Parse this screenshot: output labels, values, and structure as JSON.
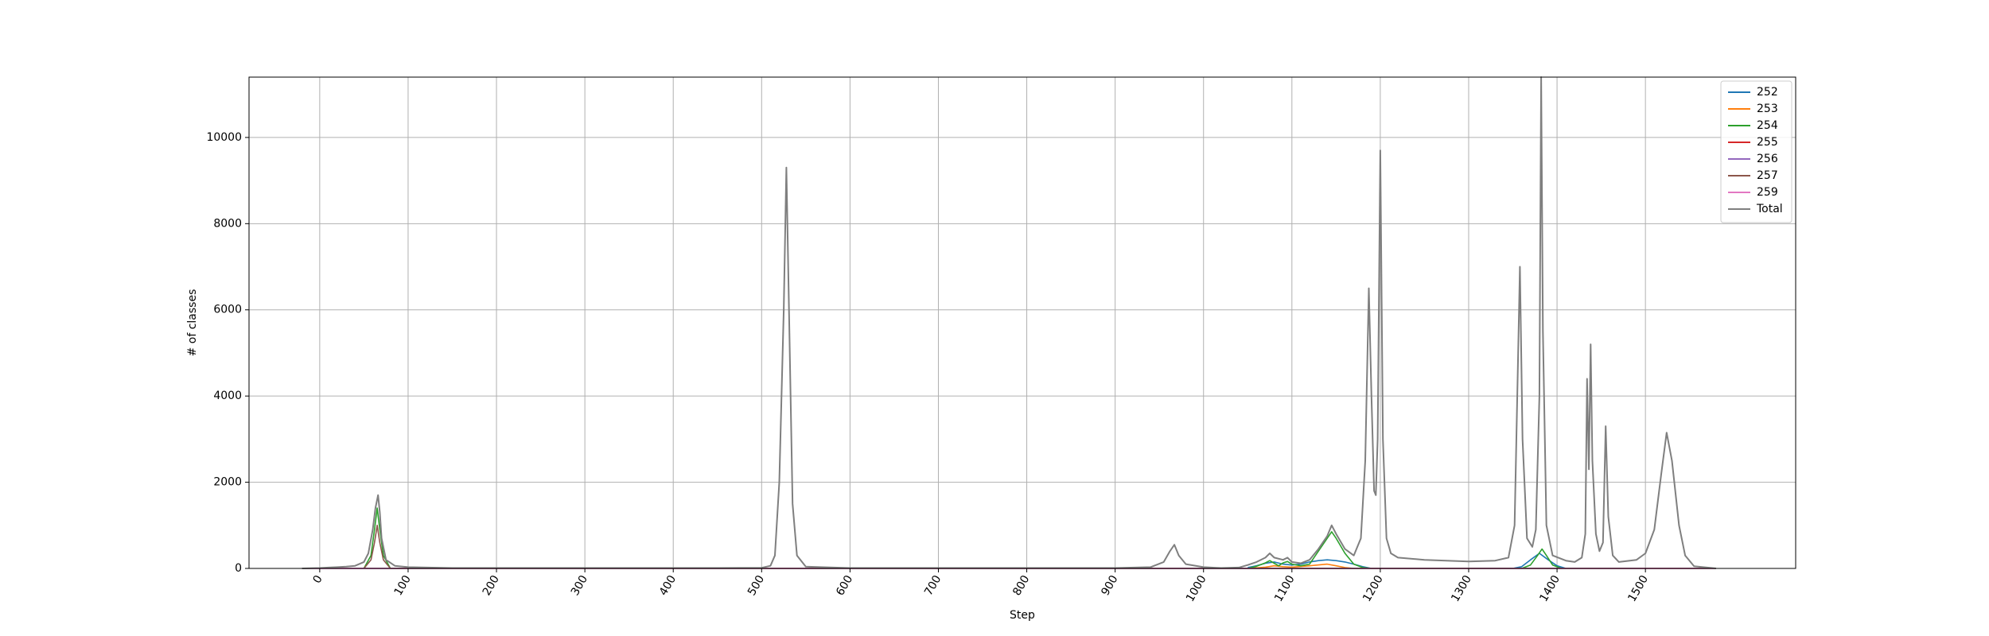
{
  "chart_data": {
    "type": "line",
    "title": "",
    "xlabel": "Step",
    "ylabel": "# of classes",
    "xlim": [
      -80,
      1670
    ],
    "ylim": [
      0,
      11400
    ],
    "xticks": [
      0,
      100,
      200,
      300,
      400,
      500,
      600,
      700,
      800,
      900,
      1000,
      1100,
      1200,
      1300,
      1400,
      1500
    ],
    "yticks": [
      0,
      2000,
      4000,
      6000,
      8000,
      10000
    ],
    "grid": true,
    "legend_position": "top-right",
    "series": [
      {
        "name": "252",
        "color": "#1f77b4",
        "points": [
          [
            1050,
            20
          ],
          [
            1060,
            60
          ],
          [
            1070,
            120
          ],
          [
            1080,
            150
          ],
          [
            1090,
            100
          ],
          [
            1100,
            80
          ],
          [
            1110,
            100
          ],
          [
            1120,
            150
          ],
          [
            1130,
            180
          ],
          [
            1140,
            200
          ],
          [
            1150,
            180
          ],
          [
            1160,
            150
          ],
          [
            1170,
            100
          ],
          [
            1180,
            40
          ],
          [
            1190,
            0
          ],
          [
            1350,
            0
          ],
          [
            1360,
            40
          ],
          [
            1370,
            200
          ],
          [
            1380,
            350
          ],
          [
            1390,
            200
          ],
          [
            1400,
            60
          ],
          [
            1410,
            0
          ]
        ]
      },
      {
        "name": "253",
        "color": "#ff7f0e",
        "points": [
          [
            1050,
            0
          ],
          [
            1070,
            30
          ],
          [
            1080,
            60
          ],
          [
            1090,
            40
          ],
          [
            1100,
            30
          ],
          [
            1120,
            60
          ],
          [
            1140,
            100
          ],
          [
            1150,
            60
          ],
          [
            1160,
            20
          ],
          [
            1170,
            0
          ]
        ]
      },
      {
        "name": "254",
        "color": "#2ca02c",
        "points": [
          [
            50,
            0
          ],
          [
            58,
            300
          ],
          [
            62,
            900
          ],
          [
            65,
            1400
          ],
          [
            68,
            900
          ],
          [
            72,
            300
          ],
          [
            80,
            0
          ],
          [
            1050,
            0
          ],
          [
            1060,
            50
          ],
          [
            1070,
            130
          ],
          [
            1075,
            180
          ],
          [
            1080,
            120
          ],
          [
            1085,
            60
          ],
          [
            1090,
            130
          ],
          [
            1095,
            160
          ],
          [
            1100,
            100
          ],
          [
            1110,
            60
          ],
          [
            1120,
            100
          ],
          [
            1130,
            400
          ],
          [
            1140,
            700
          ],
          [
            1145,
            850
          ],
          [
            1150,
            700
          ],
          [
            1160,
            350
          ],
          [
            1170,
            100
          ],
          [
            1180,
            20
          ],
          [
            1190,
            0
          ],
          [
            1360,
            0
          ],
          [
            1370,
            80
          ],
          [
            1378,
            300
          ],
          [
            1383,
            450
          ],
          [
            1388,
            300
          ],
          [
            1395,
            80
          ],
          [
            1405,
            0
          ]
        ]
      },
      {
        "name": "255",
        "color": "#d62728",
        "points": [
          [
            -20,
            0
          ],
          [
            1580,
            0
          ]
        ]
      },
      {
        "name": "256",
        "color": "#9467bd",
        "points": [
          [
            -20,
            0
          ],
          [
            1580,
            0
          ]
        ]
      },
      {
        "name": "257",
        "color": "#8c564b",
        "points": [
          [
            50,
            0
          ],
          [
            58,
            200
          ],
          [
            62,
            600
          ],
          [
            65,
            1000
          ],
          [
            68,
            600
          ],
          [
            72,
            200
          ],
          [
            80,
            0
          ],
          [
            1580,
            0
          ]
        ]
      },
      {
        "name": "259",
        "color": "#e377c2",
        "points": [
          [
            -20,
            0
          ],
          [
            1580,
            0
          ]
        ]
      },
      {
        "name": "Total",
        "color": "#7f7f7f",
        "points": [
          [
            -20,
            0
          ],
          [
            0,
            10
          ],
          [
            10,
            20
          ],
          [
            20,
            30
          ],
          [
            30,
            40
          ],
          [
            40,
            60
          ],
          [
            50,
            150
          ],
          [
            55,
            350
          ],
          [
            60,
            900
          ],
          [
            63,
            1400
          ],
          [
            66,
            1700
          ],
          [
            68,
            1300
          ],
          [
            70,
            700
          ],
          [
            75,
            200
          ],
          [
            85,
            60
          ],
          [
            100,
            30
          ],
          [
            150,
            10
          ],
          [
            300,
            10
          ],
          [
            450,
            10
          ],
          [
            500,
            15
          ],
          [
            510,
            60
          ],
          [
            515,
            300
          ],
          [
            520,
            2000
          ],
          [
            525,
            6000
          ],
          [
            528,
            9300
          ],
          [
            531,
            6000
          ],
          [
            535,
            1500
          ],
          [
            540,
            300
          ],
          [
            550,
            40
          ],
          [
            600,
            10
          ],
          [
            900,
            10
          ],
          [
            940,
            30
          ],
          [
            955,
            150
          ],
          [
            962,
            400
          ],
          [
            967,
            550
          ],
          [
            972,
            300
          ],
          [
            980,
            100
          ],
          [
            1000,
            30
          ],
          [
            1020,
            10
          ],
          [
            1040,
            20
          ],
          [
            1050,
            80
          ],
          [
            1060,
            150
          ],
          [
            1070,
            250
          ],
          [
            1075,
            350
          ],
          [
            1080,
            250
          ],
          [
            1090,
            200
          ],
          [
            1095,
            250
          ],
          [
            1100,
            150
          ],
          [
            1110,
            120
          ],
          [
            1120,
            200
          ],
          [
            1130,
            450
          ],
          [
            1140,
            750
          ],
          [
            1145,
            1000
          ],
          [
            1150,
            800
          ],
          [
            1160,
            450
          ],
          [
            1170,
            300
          ],
          [
            1178,
            700
          ],
          [
            1183,
            2500
          ],
          [
            1187,
            6500
          ],
          [
            1190,
            4000
          ],
          [
            1193,
            1800
          ],
          [
            1195,
            1700
          ],
          [
            1197,
            3000
          ],
          [
            1200,
            9700
          ],
          [
            1203,
            3000
          ],
          [
            1207,
            700
          ],
          [
            1212,
            350
          ],
          [
            1220,
            250
          ],
          [
            1250,
            200
          ],
          [
            1300,
            160
          ],
          [
            1330,
            180
          ],
          [
            1345,
            250
          ],
          [
            1352,
            1000
          ],
          [
            1356,
            5000
          ],
          [
            1358,
            7000
          ],
          [
            1361,
            3000
          ],
          [
            1366,
            700
          ],
          [
            1372,
            500
          ],
          [
            1376,
            900
          ],
          [
            1380,
            4000
          ],
          [
            1382,
            11400
          ],
          [
            1384,
            5500
          ],
          [
            1388,
            1000
          ],
          [
            1395,
            300
          ],
          [
            1410,
            180
          ],
          [
            1420,
            150
          ],
          [
            1428,
            250
          ],
          [
            1432,
            800
          ],
          [
            1434,
            4400
          ],
          [
            1436,
            2300
          ],
          [
            1438,
            5200
          ],
          [
            1440,
            2500
          ],
          [
            1444,
            800
          ],
          [
            1448,
            400
          ],
          [
            1452,
            600
          ],
          [
            1455,
            3300
          ],
          [
            1458,
            1200
          ],
          [
            1463,
            300
          ],
          [
            1470,
            150
          ],
          [
            1490,
            200
          ],
          [
            1500,
            350
          ],
          [
            1510,
            900
          ],
          [
            1518,
            2200
          ],
          [
            1524,
            3150
          ],
          [
            1530,
            2500
          ],
          [
            1538,
            1000
          ],
          [
            1545,
            300
          ],
          [
            1555,
            50
          ],
          [
            1580,
            0
          ]
        ]
      }
    ]
  }
}
